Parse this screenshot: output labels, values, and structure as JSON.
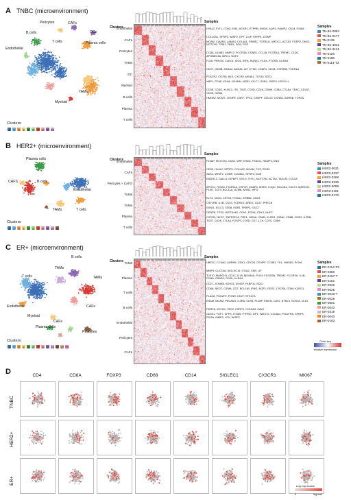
{
  "panels": {
    "a": {
      "letter": "A",
      "title": "TNBC (microenvironment)",
      "umap_labels": [
        "Pericytes",
        "CAFs",
        "B cells",
        "DCs",
        "Endothelial",
        "T cells",
        "Plasma cells",
        "TAMs",
        "Myeloid"
      ],
      "clusters_label": "Clusters:",
      "clusters": [
        "1",
        "2",
        "3",
        "4",
        "5",
        "6",
        "7",
        "8",
        "9",
        "10"
      ],
      "cluster_colors": [
        "#3b6fb6",
        "#6fb1e0",
        "#f29a3a",
        "#f7c979",
        "#3a9a48",
        "#9bd48a",
        "#d33a34",
        "#f29c9a",
        "#8c66b8",
        "#c9a8d9"
      ],
      "heat_header": "Clusters",
      "samples_header": "Samples",
      "rows": [
        "Endothelial",
        "CAFs",
        "Pericytes",
        "TAMs",
        "DC",
        "Myeloid",
        "B cells",
        "Plasma",
        "T cells"
      ],
      "genes": [
        "HYAL2, FLT1, CD93, ENG, ACKR1, PTPRB, EMCN, AQP1, RAMP2, CD34, ESAM",
        "COL10A1, SFRP2, WISP2, DPT, CILP, SFRP4, COMP",
        "MCAM, CAVIN3, LAMA4, COL4A1, SPARC, TGFB1I1, WFDC1, ACTA2, FGFR2, DKK3, NOTCH3, TPM1, FBN1, DCN, PGF",
        "C1QA, ULNB3, MMP12, FCGR3A, CSAR1, CCL18, FCGR1A, TREM1, C1QC, APOBEC3A, MRC1, NCF2",
        "FLE6, PRKCB, CLEC4, IDO1, IRF8, RUNX2, PLD4, PTCRA, LILRA4",
        "CD37, GZMB, MS4A2, ANXA1, LIF, CTSD, CSAR1, CD33, CSF2RB, FCER1A",
        "POU2F2, CD79A, BLK, CXCR5, MS4A1, TLR10, SDC1",
        "XBP1, CD38, IGHM, JCHAIN, MZB1, IGLC7, SSR4, JSRP1, IGKV4-1",
        "CD3E, CD3G, KLRC1, ITK, TIGIT, CD3D, CD28, GZMH, CD8A, CTLA4, TRAC, CD247, CD96, GZMA",
        "HMGB2, MCM7, CENPE, LBR7, TPX2, CENPF, CDC20, CCNB2, AURKB, TOP2A"
      ],
      "samples": [
        "TN-B1-0054",
        "TN-B1-0177",
        "TN-0135",
        "TN-B1-4031",
        "TN-B1-2131",
        "TN-0126",
        "TN-0106",
        "TN-0114-T2"
      ],
      "sample_colors": [
        "#3a8fb8",
        "#e0524a",
        "#f5a43a",
        "#6a3d9a",
        "#b2df8a",
        "#e78ac3",
        "#1f78b4",
        "#a6761d"
      ]
    },
    "b": {
      "letter": "B",
      "title": "HER2+ (microenvironment)",
      "umap_labels": [
        "Plasma cells",
        "CAFS",
        "B cells",
        "Endothelial",
        "TAMs",
        "T cells"
      ],
      "clusters_label": "Clusters:",
      "clusters": [
        "1",
        "2",
        "3",
        "4",
        "5",
        "6",
        "7",
        "8",
        "9",
        "10",
        "11"
      ],
      "cluster_colors": [
        "#3b6fb6",
        "#6fb1e0",
        "#f29a3a",
        "#f7c979",
        "#3a9a48",
        "#9bd48a",
        "#d33a34",
        "#f29c9a",
        "#8c66b8",
        "#c9a8d9",
        "#8a5a3c"
      ],
      "heat_header": "Clusters",
      "samples_header": "Samples",
      "rows": [
        "Endothelial",
        "CAFs",
        "Pericytes + CAFS",
        "TAMs",
        "TAMs",
        "Plasma",
        "T cells"
      ],
      "genes": [
        "PLVAP, NOTCH4, CD34, VWF, ESM1, PODXL, RAMP2, ENG",
        "CD93, HYAL2, SFRP1, COL4A2, MCAM, PGF, RGS5",
        "SDC1, WISP2, COMP, COL8A1, SFRP4, DCN",
        "ENDOL1, CALD1, IGFBP7, MYL9, THY1, NOTCH3, ACTA2, TAGLN, COL1A",
        "APOC1, ITGAX, FCGR1A, CSF1R, CSAR1, MSR1, C1QC, BCL2A1, CD274, MARCH1, PLEK, TCF4, BCL11A, GZMB, MYB2, IRF4",
        "ELF3, CDH1, KRT18, FOXA1, ERBB2, CD24",
        "CSF2RB, IL1B, CD33, FCER1G, AREG, CD37, PRKCB",
        "IGHA1, IGLC3, CD38, MZB1, FKBP2, IGLC7",
        "CENPE, TPX2, HIST1H4C, CDK1, PCNA, CDK1, NUF2",
        "CXCR3, NKG7, TNFRSF18, PRF1, GZMA, CD8B, KLRD1, GZMK, CD8B, CD3G, IL2RB, TIGIT, CD28, CTLA4, FOXP3, CD3D, CD7, LCK, CD70, CD69"
      ],
      "samples": [
        "HER2-0031",
        "HER2-0337",
        "HER2-0308",
        "HER2-0336",
        "HER2-0069",
        "HER2-0161",
        "HER2-0176"
      ],
      "sample_colors": [
        "#3a8fb8",
        "#e0524a",
        "#f5a43a",
        "#6a3d9a",
        "#b2df8a",
        "#e78ac3",
        "#1f78b4"
      ]
    },
    "c": {
      "letter": "C",
      "title": "ER+ (microenvironment)",
      "umap_labels": [
        "B cells",
        "TAMs",
        "T cells",
        "TAMs",
        "Endothelial",
        "CAFs",
        "Myeloid",
        "CAFs",
        "Plasma cells",
        "Pericytes"
      ],
      "clusters_label": "Clusters:",
      "clusters": [
        "1",
        "2",
        "3",
        "4",
        "5",
        "6",
        "7",
        "8",
        "9",
        "10",
        "11",
        "12",
        "13"
      ],
      "cluster_colors": [
        "#3b6fb6",
        "#6fb1e0",
        "#f29a3a",
        "#f7c979",
        "#3a9a48",
        "#9bd48a",
        "#d33a34",
        "#f29c9a",
        "#8c66b8",
        "#c9a8d9",
        "#8a5a3c",
        "#d9a88a",
        "#e67cc0"
      ],
      "heat_header": "Clusters",
      "samples_header": "Samples",
      "rows": [
        "TAMs",
        "Plasma",
        "T cells",
        "B cells",
        "Endothelial",
        "Pericytes",
        "CAFs"
      ],
      "genes": [
        "UBE2C, CCNA2, AURKB, CDK1, CDC20, CENPF, CCNB1, TK1, HMGB2, PCNA",
        "MMP9, CLEC4A, SIGLEC15, ITGA2, CKB, LIF",
        "TLR10, MARCH1, CD1C, IL18, MS4A6A, PLD4, FCGR2B, TREM2, FCGR3A, IL1B, PCNA, CSAR1, CD52, LILRA4",
        "CD27, JCHAIN, IGHG3, IGHGP, FKBP11, SDC1",
        "CD8A, NKG7, GZMA, CD7, BCL11B, IFNG, IKZF1, RGS1, CXCR6, CD69, KLRG1",
        "PLAC8, POU2F2, PCNR, CD27, STK17A",
        "ESAM, MCAM, PECAM1, IL3RA, CD93, PLVAP, EMCN, CAV2, BTNL9, SOX18, DLL4",
        "PDGFA, MYH11, TBX2, CSRP2, COL5A3, CAV2",
        "CDH11, FGF7, SFPX, ITGB5, PTPRD, DPT, TWIST2, COL8A1, PDGFRA, SFRP4, PDGN, MMP3, LOX, WISP2"
      ],
      "samples": [
        "ER-0114-T3",
        "ER-0360",
        "ER-0167-T",
        "ER-0151",
        "ER-0032",
        "ER-0025",
        "ER-0043-T",
        "ER-0025",
        "ER-0001",
        "ER-0042",
        "ER-0319",
        "ER-0040",
        "ER-0163"
      ],
      "sample_colors": [
        "#1f78b4",
        "#e0524a",
        "#f5a43a",
        "#6a3d9a",
        "#b2df8a",
        "#e78ac3",
        "#3a8fb8",
        "#a6761d",
        "#33a02c",
        "#fb9a99",
        "#cab2d6",
        "#ff7f00",
        "#b15928"
      ],
      "colorkey_label": "Color key",
      "colorkey_sub": "relative expression"
    },
    "d": {
      "letter": "D",
      "columns": [
        "CD4",
        "CD8A",
        "FOXP3",
        "CD68",
        "CD14",
        "SIGLEC1",
        "CX3CR1",
        "MKI67"
      ],
      "rows": [
        "TNBC",
        "HER2+",
        "ER+"
      ],
      "legend_title": "Log expression",
      "legend_low": "0",
      "legend_high": "highest"
    }
  },
  "colors": {
    "heat_red": "#d8383a",
    "heat_blue": "#3a4fb0",
    "expr": "#e8473a",
    "grey": "#b8b8b8"
  }
}
